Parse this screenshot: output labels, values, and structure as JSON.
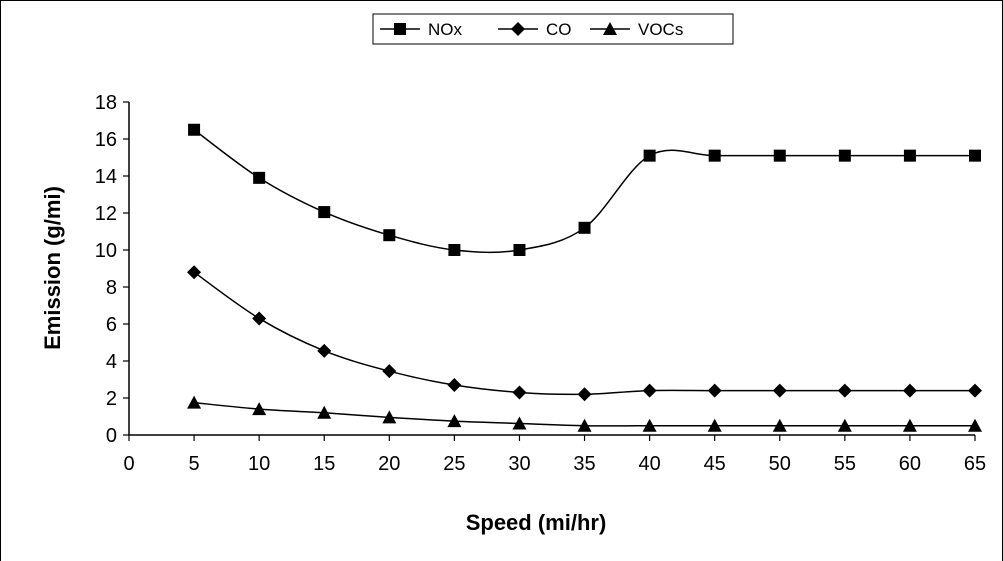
{
  "chart_data": {
    "type": "line",
    "xlabel": "Speed (mi/hr)",
    "ylabel": "Emission (g/mi)",
    "xlim": [
      0,
      65
    ],
    "ylim": [
      0,
      18
    ],
    "xticks": [
      "0",
      "5",
      "10",
      "15",
      "20",
      "25",
      "30",
      "35",
      "40",
      "45",
      "50",
      "55",
      "60",
      "65"
    ],
    "yticks": [
      "0",
      "2",
      "4",
      "6",
      "8",
      "10",
      "12",
      "14",
      "16",
      "18"
    ],
    "x": [
      5,
      10,
      15,
      20,
      25,
      30,
      35,
      40,
      45,
      50,
      55,
      60,
      65
    ],
    "legend_position": "top-center",
    "grid": false,
    "series": [
      {
        "name": "NOx",
        "marker": "square",
        "values": [
          16.5,
          13.9,
          12.05,
          10.8,
          10.0,
          10.0,
          11.2,
          15.1,
          15.1,
          15.1,
          15.1,
          15.1,
          15.1
        ]
      },
      {
        "name": "CO",
        "marker": "diamond",
        "values": [
          8.8,
          6.3,
          4.55,
          3.45,
          2.7,
          2.3,
          2.2,
          2.4,
          2.4,
          2.4,
          2.4,
          2.4,
          2.4
        ]
      },
      {
        "name": "VOCs",
        "marker": "triangle",
        "values": [
          1.75,
          1.4,
          1.2,
          0.95,
          0.75,
          0.62,
          0.5,
          0.5,
          0.5,
          0.5,
          0.5,
          0.5,
          0.5
        ]
      }
    ]
  }
}
